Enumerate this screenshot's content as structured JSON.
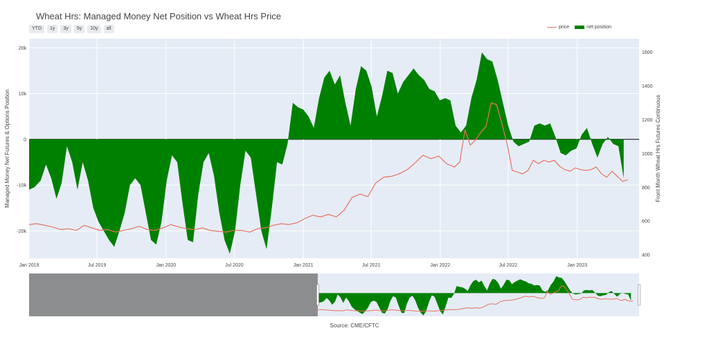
{
  "title": "Wheat Hrs: Managed Money Net Position vs Wheat Hrs Price",
  "range_buttons": [
    "YTD",
    "1y",
    "3y",
    "5y",
    "10y",
    "all"
  ],
  "legend": {
    "price": "price",
    "net": "net position"
  },
  "source": "Source: CME/CFTC",
  "colors": {
    "price": "#e8725e",
    "net": "#008000",
    "plot_bg": "#e5ecf6",
    "mask": "#7f7f7f"
  },
  "chart_data": {
    "type": "area",
    "xlabel": "",
    "y_left_label": "Managed Money Net Futures & Options Position",
    "y_right_label": "Front Month Wheat Hrs Futures Continuous",
    "x_range": [
      "2019-01-01",
      "2023-06-15"
    ],
    "y_left_range": [
      -26000,
      22000
    ],
    "y_right_range": [
      380,
      1680
    ],
    "x_ticks": [
      {
        "date": "2019-01-01",
        "label": "Jan 2019"
      },
      {
        "date": "2019-07-01",
        "label": "Jul 2019"
      },
      {
        "date": "2020-01-01",
        "label": "Jan 2020"
      },
      {
        "date": "2020-07-01",
        "label": "Jul 2020"
      },
      {
        "date": "2021-01-01",
        "label": "Jan 2021"
      },
      {
        "date": "2021-07-01",
        "label": "Jul 2021"
      },
      {
        "date": "2022-01-01",
        "label": "Jan 2022"
      },
      {
        "date": "2022-07-01",
        "label": "Jul 2022"
      },
      {
        "date": "2023-01-01",
        "label": "Jan 2023"
      }
    ],
    "y_left_ticks": [
      {
        "value": 20000,
        "label": "20k"
      },
      {
        "value": 10000,
        "label": "10k"
      },
      {
        "value": 0,
        "label": "0"
      },
      {
        "value": -10000,
        "label": "-10k"
      },
      {
        "value": -20000,
        "label": "-20k"
      }
    ],
    "y_right_ticks": [
      {
        "value": 1600,
        "label": "1600"
      },
      {
        "value": 1400,
        "label": "1400"
      },
      {
        "value": 1200,
        "label": "1200"
      },
      {
        "value": 1000,
        "label": "1000"
      },
      {
        "value": 800,
        "label": "800"
      },
      {
        "value": 600,
        "label": "600"
      },
      {
        "value": 400,
        "label": "400"
      }
    ],
    "series": [
      {
        "name": "net position",
        "axis": "left",
        "style": "area",
        "points": [
          [
            "2019-01-01",
            -11000
          ],
          [
            "2019-01-15",
            -10500
          ],
          [
            "2019-02-01",
            -9000
          ],
          [
            "2019-02-15",
            -5500
          ],
          [
            "2019-03-01",
            -8500
          ],
          [
            "2019-03-15",
            -13000
          ],
          [
            "2019-03-29",
            -9500
          ],
          [
            "2019-04-12",
            -1500
          ],
          [
            "2019-04-26",
            -5000
          ],
          [
            "2019-05-10",
            -11000
          ],
          [
            "2019-05-24",
            -5000
          ],
          [
            "2019-06-07",
            -9000
          ],
          [
            "2019-06-21",
            -15000
          ],
          [
            "2019-07-05",
            -18000
          ],
          [
            "2019-07-19",
            -20000
          ],
          [
            "2019-08-02",
            -22000
          ],
          [
            "2019-08-16",
            -23500
          ],
          [
            "2019-08-30",
            -20000
          ],
          [
            "2019-09-13",
            -16000
          ],
          [
            "2019-09-27",
            -10000
          ],
          [
            "2019-10-11",
            -8500
          ],
          [
            "2019-10-25",
            -10000
          ],
          [
            "2019-11-08",
            -16000
          ],
          [
            "2019-11-22",
            -22000
          ],
          [
            "2019-12-06",
            -23000
          ],
          [
            "2019-12-20",
            -18000
          ],
          [
            "2020-01-03",
            -9000
          ],
          [
            "2020-01-17",
            -3500
          ],
          [
            "2020-01-31",
            -5000
          ],
          [
            "2020-02-14",
            -14000
          ],
          [
            "2020-02-28",
            -22000
          ],
          [
            "2020-03-13",
            -22500
          ],
          [
            "2020-03-27",
            -12000
          ],
          [
            "2020-04-10",
            -5000
          ],
          [
            "2020-04-24",
            -3000
          ],
          [
            "2020-05-08",
            -8000
          ],
          [
            "2020-05-22",
            -16000
          ],
          [
            "2020-06-05",
            -22000
          ],
          [
            "2020-06-19",
            -25000
          ],
          [
            "2020-07-03",
            -20000
          ],
          [
            "2020-07-17",
            -10000
          ],
          [
            "2020-07-31",
            -2500
          ],
          [
            "2020-08-14",
            -4000
          ],
          [
            "2020-08-28",
            -12000
          ],
          [
            "2020-09-11",
            -20000
          ],
          [
            "2020-09-25",
            -24000
          ],
          [
            "2020-10-09",
            -15000
          ],
          [
            "2020-10-23",
            -5000
          ],
          [
            "2020-11-06",
            -5500
          ],
          [
            "2020-11-20",
            -1000
          ],
          [
            "2020-12-04",
            8000
          ],
          [
            "2020-12-18",
            7000
          ],
          [
            "2021-01-01",
            6500
          ],
          [
            "2021-01-15",
            5000
          ],
          [
            "2021-01-29",
            2500
          ],
          [
            "2021-02-12",
            9000
          ],
          [
            "2021-02-26",
            13500
          ],
          [
            "2021-03-12",
            15000
          ],
          [
            "2021-03-26",
            12000
          ],
          [
            "2021-04-09",
            14000
          ],
          [
            "2021-04-23",
            8000
          ],
          [
            "2021-05-07",
            3000
          ],
          [
            "2021-05-21",
            11000
          ],
          [
            "2021-06-04",
            16000
          ],
          [
            "2021-06-18",
            15000
          ],
          [
            "2021-07-02",
            11500
          ],
          [
            "2021-07-16",
            5000
          ],
          [
            "2021-07-30",
            9500
          ],
          [
            "2021-08-13",
            15000
          ],
          [
            "2021-08-27",
            14500
          ],
          [
            "2021-09-10",
            10000
          ],
          [
            "2021-09-24",
            12500
          ],
          [
            "2021-10-08",
            14000
          ],
          [
            "2021-10-22",
            15500
          ],
          [
            "2021-11-05",
            14000
          ],
          [
            "2021-11-19",
            13000
          ],
          [
            "2021-12-03",
            11000
          ],
          [
            "2021-12-17",
            10500
          ],
          [
            "2021-12-31",
            8500
          ],
          [
            "2022-01-14",
            9000
          ],
          [
            "2022-01-28",
            8500
          ],
          [
            "2022-02-11",
            3000
          ],
          [
            "2022-02-25",
            1500
          ],
          [
            "2022-03-11",
            3000
          ],
          [
            "2022-03-25",
            9000
          ],
          [
            "2022-04-08",
            13000
          ],
          [
            "2022-04-22",
            19000
          ],
          [
            "2022-05-06",
            17500
          ],
          [
            "2022-05-20",
            17000
          ],
          [
            "2022-06-03",
            13000
          ],
          [
            "2022-06-17",
            8000
          ],
          [
            "2022-07-01",
            3000
          ],
          [
            "2022-07-15",
            -500
          ],
          [
            "2022-07-29",
            -1500
          ],
          [
            "2022-08-12",
            -1000
          ],
          [
            "2022-08-26",
            -500
          ],
          [
            "2022-09-09",
            3000
          ],
          [
            "2022-09-23",
            3500
          ],
          [
            "2022-10-07",
            3000
          ],
          [
            "2022-10-21",
            3500
          ],
          [
            "2022-11-04",
            500
          ],
          [
            "2022-11-18",
            -3000
          ],
          [
            "2022-12-02",
            -3500
          ],
          [
            "2022-12-16",
            -2500
          ],
          [
            "2022-12-30",
            -2000
          ],
          [
            "2023-01-13",
            1000
          ],
          [
            "2023-01-27",
            2500
          ],
          [
            "2023-02-10",
            -1000
          ],
          [
            "2023-02-24",
            -4000
          ],
          [
            "2023-03-10",
            -1000
          ],
          [
            "2023-03-24",
            500
          ],
          [
            "2023-04-07",
            -1000
          ],
          [
            "2023-04-21",
            -1500
          ],
          [
            "2023-05-05",
            -8500
          ]
        ]
      },
      {
        "name": "price",
        "axis": "right",
        "style": "line",
        "points": [
          [
            "2019-01-01",
            580
          ],
          [
            "2019-01-22",
            585
          ],
          [
            "2019-02-12",
            575
          ],
          [
            "2019-03-05",
            565
          ],
          [
            "2019-03-26",
            550
          ],
          [
            "2019-04-16",
            555
          ],
          [
            "2019-05-07",
            545
          ],
          [
            "2019-05-28",
            575
          ],
          [
            "2019-06-18",
            560
          ],
          [
            "2019-07-09",
            545
          ],
          [
            "2019-07-30",
            550
          ],
          [
            "2019-08-20",
            535
          ],
          [
            "2019-09-10",
            545
          ],
          [
            "2019-10-01",
            555
          ],
          [
            "2019-10-22",
            570
          ],
          [
            "2019-11-12",
            550
          ],
          [
            "2019-12-03",
            545
          ],
          [
            "2019-12-24",
            560
          ],
          [
            "2020-01-14",
            580
          ],
          [
            "2020-02-04",
            565
          ],
          [
            "2020-02-25",
            555
          ],
          [
            "2020-03-17",
            550
          ],
          [
            "2020-04-07",
            560
          ],
          [
            "2020-04-28",
            545
          ],
          [
            "2020-05-19",
            540
          ],
          [
            "2020-06-09",
            535
          ],
          [
            "2020-06-30",
            545
          ],
          [
            "2020-07-21",
            545
          ],
          [
            "2020-08-11",
            535
          ],
          [
            "2020-09-01",
            555
          ],
          [
            "2020-09-22",
            560
          ],
          [
            "2020-10-13",
            575
          ],
          [
            "2020-11-03",
            585
          ],
          [
            "2020-11-24",
            580
          ],
          [
            "2020-12-15",
            590
          ],
          [
            "2021-01-05",
            615
          ],
          [
            "2021-01-26",
            635
          ],
          [
            "2021-02-16",
            625
          ],
          [
            "2021-03-09",
            640
          ],
          [
            "2021-03-30",
            625
          ],
          [
            "2021-04-20",
            665
          ],
          [
            "2021-05-11",
            740
          ],
          [
            "2021-06-01",
            760
          ],
          [
            "2021-06-22",
            745
          ],
          [
            "2021-07-13",
            825
          ],
          [
            "2021-08-03",
            860
          ],
          [
            "2021-08-24",
            865
          ],
          [
            "2021-09-14",
            880
          ],
          [
            "2021-10-05",
            905
          ],
          [
            "2021-10-26",
            945
          ],
          [
            "2021-11-16",
            990
          ],
          [
            "2021-12-07",
            970
          ],
          [
            "2021-12-28",
            985
          ],
          [
            "2022-01-18",
            940
          ],
          [
            "2022-02-08",
            920
          ],
          [
            "2022-02-22",
            950
          ],
          [
            "2022-03-08",
            1140
          ],
          [
            "2022-03-22",
            1050
          ],
          [
            "2022-04-05",
            1080
          ],
          [
            "2022-04-19",
            1125
          ],
          [
            "2022-05-03",
            1160
          ],
          [
            "2022-05-17",
            1300
          ],
          [
            "2022-05-31",
            1290
          ],
          [
            "2022-06-14",
            1180
          ],
          [
            "2022-06-28",
            1060
          ],
          [
            "2022-07-12",
            900
          ],
          [
            "2022-07-26",
            890
          ],
          [
            "2022-08-09",
            880
          ],
          [
            "2022-08-23",
            900
          ],
          [
            "2022-09-06",
            960
          ],
          [
            "2022-09-20",
            940
          ],
          [
            "2022-10-04",
            960
          ],
          [
            "2022-10-18",
            950
          ],
          [
            "2022-11-01",
            960
          ],
          [
            "2022-11-15",
            925
          ],
          [
            "2022-11-29",
            905
          ],
          [
            "2022-12-13",
            895
          ],
          [
            "2022-12-27",
            915
          ],
          [
            "2023-01-10",
            905
          ],
          [
            "2023-01-24",
            900
          ],
          [
            "2023-02-07",
            905
          ],
          [
            "2023-02-21",
            920
          ],
          [
            "2023-03-07",
            880
          ],
          [
            "2023-03-21",
            860
          ],
          [
            "2023-04-04",
            895
          ],
          [
            "2023-04-18",
            865
          ],
          [
            "2023-05-02",
            835
          ],
          [
            "2023-05-16",
            845
          ]
        ]
      }
    ],
    "range_slider": {
      "x_range": [
        "2015-01-01",
        "2023-06-15"
      ],
      "selected": [
        "2019-01-01",
        "2023-06-15"
      ]
    }
  }
}
